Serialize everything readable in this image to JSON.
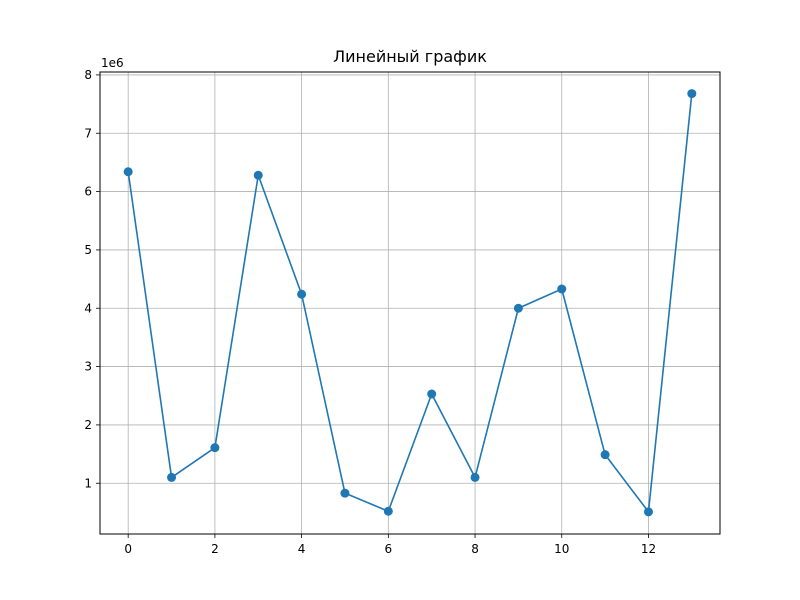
{
  "chart_data": {
    "type": "line",
    "title": "Линейный график",
    "xlabel": "",
    "ylabel": "",
    "x": [
      0,
      1,
      2,
      3,
      4,
      5,
      6,
      7,
      8,
      9,
      10,
      11,
      12,
      13
    ],
    "series": [
      {
        "values": [
          6340000,
          1100000,
          1610000,
          6280000,
          4240000,
          830000,
          520000,
          2530000,
          1100000,
          4000000,
          4330000,
          1490000,
          510000,
          7680000
        ],
        "color": "#1f77b4",
        "marker": "circle"
      }
    ],
    "xlim": [
      -0.65,
      13.65
    ],
    "ylim": [
      130000,
      8050000
    ],
    "x_ticks": [
      0,
      2,
      4,
      6,
      8,
      10,
      12
    ],
    "x_tick_labels": [
      "0",
      "2",
      "4",
      "6",
      "8",
      "10",
      "12"
    ],
    "y_ticks": [
      1000000,
      2000000,
      3000000,
      4000000,
      5000000,
      6000000,
      7000000,
      8000000
    ],
    "y_tick_labels": [
      "1",
      "2",
      "3",
      "4",
      "5",
      "6",
      "7",
      "8"
    ],
    "y_offset_label": "1e6",
    "grid": true
  }
}
